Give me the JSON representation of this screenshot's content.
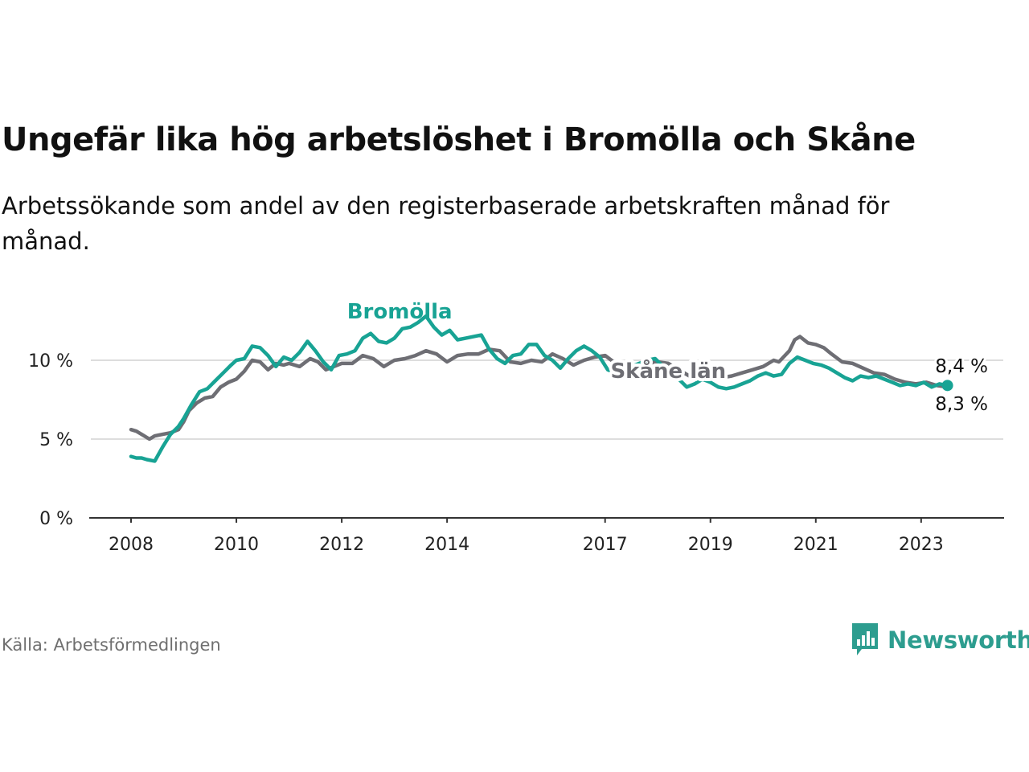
{
  "title": "Ungefär lika hög arbetslöshet i Bromölla och Skåne",
  "subtitle": "Arbetssökande som andel av den registerbaserade arbetskraften månad för månad.",
  "source": "Källa: Arbetsförmedlingen",
  "brand": {
    "name": "Newsworthy",
    "icon": "newsworthy-logo-icon"
  },
  "colors": {
    "bromolla": "#18a394",
    "skane": "#6e6e74",
    "grid": "#dddddd",
    "axis": "#333333"
  },
  "chart_data": {
    "type": "line",
    "title": "Ungefär lika hög arbetslöshet i Bromölla och Skåne",
    "xlabel": "",
    "ylabel": "",
    "xlim": [
      2008,
      2024.3
    ],
    "ylim": [
      0,
      12
    ],
    "yticks": [
      0,
      5,
      10
    ],
    "ytick_labels": [
      "0 %",
      "5 %",
      "10 %"
    ],
    "xticks": [
      2008,
      2010,
      2012,
      2014,
      2017,
      2019,
      2021,
      2023
    ],
    "xtick_labels": [
      "2008",
      "2010",
      "2012",
      "2014",
      "2017",
      "2019",
      "2021",
      "2023"
    ],
    "grid": true,
    "series": [
      {
        "name": "Skåne län",
        "label": "Skåne län",
        "end_label": "8,3 %",
        "points": [
          [
            2008.0,
            5.6
          ],
          [
            2008.1,
            5.5
          ],
          [
            2008.2,
            5.3
          ],
          [
            2008.35,
            5.0
          ],
          [
            2008.45,
            5.2
          ],
          [
            2008.6,
            5.3
          ],
          [
            2008.75,
            5.4
          ],
          [
            2008.9,
            5.6
          ],
          [
            2009.0,
            6.1
          ],
          [
            2009.1,
            6.8
          ],
          [
            2009.25,
            7.3
          ],
          [
            2009.4,
            7.6
          ],
          [
            2009.55,
            7.7
          ],
          [
            2009.7,
            8.3
          ],
          [
            2009.85,
            8.6
          ],
          [
            2010.0,
            8.8
          ],
          [
            2010.15,
            9.3
          ],
          [
            2010.3,
            10.0
          ],
          [
            2010.45,
            9.9
          ],
          [
            2010.6,
            9.4
          ],
          [
            2010.75,
            9.8
          ],
          [
            2010.9,
            9.7
          ],
          [
            2011.0,
            9.8
          ],
          [
            2011.2,
            9.6
          ],
          [
            2011.4,
            10.1
          ],
          [
            2011.55,
            9.9
          ],
          [
            2011.7,
            9.4
          ],
          [
            2011.85,
            9.6
          ],
          [
            2012.0,
            9.8
          ],
          [
            2012.2,
            9.8
          ],
          [
            2012.4,
            10.3
          ],
          [
            2012.6,
            10.1
          ],
          [
            2012.8,
            9.6
          ],
          [
            2013.0,
            10.0
          ],
          [
            2013.2,
            10.1
          ],
          [
            2013.4,
            10.3
          ],
          [
            2013.6,
            10.6
          ],
          [
            2013.8,
            10.4
          ],
          [
            2014.0,
            9.9
          ],
          [
            2014.2,
            10.3
          ],
          [
            2014.4,
            10.4
          ],
          [
            2014.6,
            10.4
          ],
          [
            2014.8,
            10.7
          ],
          [
            2015.0,
            10.6
          ],
          [
            2015.2,
            9.9
          ],
          [
            2015.4,
            9.8
          ],
          [
            2015.6,
            10.0
          ],
          [
            2015.8,
            9.9
          ],
          [
            2016.0,
            10.4
          ],
          [
            2016.2,
            10.1
          ],
          [
            2016.4,
            9.7
          ],
          [
            2016.6,
            10.0
          ],
          [
            2016.8,
            10.2
          ],
          [
            2017.0,
            10.3
          ],
          [
            2017.2,
            9.8
          ],
          [
            2017.4,
            9.6
          ],
          [
            2017.6,
            9.7
          ],
          [
            2017.8,
            9.8
          ],
          [
            2018.0,
            9.9
          ],
          [
            2018.2,
            9.8
          ],
          [
            2018.4,
            9.4
          ],
          [
            2018.6,
            9.0
          ],
          [
            2018.8,
            8.9
          ],
          [
            2019.0,
            9.0
          ],
          [
            2019.2,
            8.9
          ],
          [
            2019.4,
            9.0
          ],
          [
            2019.6,
            9.2
          ],
          [
            2019.8,
            9.4
          ],
          [
            2020.0,
            9.6
          ],
          [
            2020.2,
            10.0
          ],
          [
            2020.3,
            9.9
          ],
          [
            2020.5,
            10.6
          ],
          [
            2020.6,
            11.3
          ],
          [
            2020.7,
            11.5
          ],
          [
            2020.85,
            11.1
          ],
          [
            2021.0,
            11.0
          ],
          [
            2021.15,
            10.8
          ],
          [
            2021.3,
            10.4
          ],
          [
            2021.5,
            9.9
          ],
          [
            2021.7,
            9.8
          ],
          [
            2021.9,
            9.5
          ],
          [
            2022.1,
            9.2
          ],
          [
            2022.3,
            9.1
          ],
          [
            2022.5,
            8.8
          ],
          [
            2022.7,
            8.6
          ],
          [
            2022.9,
            8.5
          ],
          [
            2023.1,
            8.6
          ],
          [
            2023.3,
            8.4
          ],
          [
            2023.5,
            8.3
          ]
        ]
      },
      {
        "name": "Bromölla",
        "label": "Bromölla",
        "end_label": "8,4 %",
        "points": [
          [
            2008.0,
            3.9
          ],
          [
            2008.1,
            3.8
          ],
          [
            2008.2,
            3.8
          ],
          [
            2008.3,
            3.7
          ],
          [
            2008.45,
            3.6
          ],
          [
            2008.6,
            4.5
          ],
          [
            2008.75,
            5.3
          ],
          [
            2008.9,
            5.8
          ],
          [
            2009.0,
            6.3
          ],
          [
            2009.15,
            7.2
          ],
          [
            2009.3,
            8.0
          ],
          [
            2009.45,
            8.2
          ],
          [
            2009.6,
            8.7
          ],
          [
            2009.75,
            9.2
          ],
          [
            2009.9,
            9.7
          ],
          [
            2010.0,
            10.0
          ],
          [
            2010.15,
            10.1
          ],
          [
            2010.3,
            10.9
          ],
          [
            2010.45,
            10.8
          ],
          [
            2010.6,
            10.3
          ],
          [
            2010.75,
            9.6
          ],
          [
            2010.9,
            10.2
          ],
          [
            2011.05,
            10.0
          ],
          [
            2011.2,
            10.5
          ],
          [
            2011.35,
            11.2
          ],
          [
            2011.5,
            10.6
          ],
          [
            2011.65,
            9.9
          ],
          [
            2011.8,
            9.4
          ],
          [
            2011.95,
            10.3
          ],
          [
            2012.1,
            10.4
          ],
          [
            2012.25,
            10.6
          ],
          [
            2012.4,
            11.4
          ],
          [
            2012.55,
            11.7
          ],
          [
            2012.7,
            11.2
          ],
          [
            2012.85,
            11.1
          ],
          [
            2013.0,
            11.4
          ],
          [
            2013.15,
            12.0
          ],
          [
            2013.3,
            12.1
          ],
          [
            2013.45,
            12.4
          ],
          [
            2013.6,
            12.8
          ],
          [
            2013.75,
            12.1
          ],
          [
            2013.9,
            11.6
          ],
          [
            2014.05,
            11.9
          ],
          [
            2014.2,
            11.3
          ],
          [
            2014.35,
            11.4
          ],
          [
            2014.5,
            11.5
          ],
          [
            2014.65,
            11.6
          ],
          [
            2014.8,
            10.7
          ],
          [
            2014.95,
            10.1
          ],
          [
            2015.1,
            9.8
          ],
          [
            2015.25,
            10.3
          ],
          [
            2015.4,
            10.4
          ],
          [
            2015.55,
            11.0
          ],
          [
            2015.7,
            11.0
          ],
          [
            2015.85,
            10.3
          ],
          [
            2016.0,
            10.0
          ],
          [
            2016.15,
            9.5
          ],
          [
            2016.3,
            10.1
          ],
          [
            2016.45,
            10.6
          ],
          [
            2016.6,
            10.9
          ],
          [
            2016.75,
            10.6
          ],
          [
            2016.9,
            10.2
          ],
          [
            2017.05,
            9.4
          ],
          [
            2017.2,
            9.2
          ],
          [
            2017.35,
            9.2
          ],
          [
            2017.5,
            9.6
          ],
          [
            2017.65,
            9.8
          ],
          [
            2017.8,
            10.0
          ],
          [
            2017.95,
            10.1
          ],
          [
            2018.1,
            9.6
          ],
          [
            2018.25,
            9.3
          ],
          [
            2018.4,
            8.8
          ],
          [
            2018.55,
            8.3
          ],
          [
            2018.7,
            8.5
          ],
          [
            2018.85,
            8.8
          ],
          [
            2019.0,
            8.6
          ],
          [
            2019.15,
            8.3
          ],
          [
            2019.3,
            8.2
          ],
          [
            2019.45,
            8.3
          ],
          [
            2019.6,
            8.5
          ],
          [
            2019.75,
            8.7
          ],
          [
            2019.9,
            9.0
          ],
          [
            2020.05,
            9.2
          ],
          [
            2020.2,
            9.0
          ],
          [
            2020.35,
            9.1
          ],
          [
            2020.5,
            9.8
          ],
          [
            2020.65,
            10.2
          ],
          [
            2020.8,
            10.0
          ],
          [
            2020.95,
            9.8
          ],
          [
            2021.1,
            9.7
          ],
          [
            2021.25,
            9.5
          ],
          [
            2021.4,
            9.2
          ],
          [
            2021.55,
            8.9
          ],
          [
            2021.7,
            8.7
          ],
          [
            2021.85,
            9.0
          ],
          [
            2022.0,
            8.9
          ],
          [
            2022.15,
            9.0
          ],
          [
            2022.3,
            8.8
          ],
          [
            2022.45,
            8.6
          ],
          [
            2022.6,
            8.4
          ],
          [
            2022.75,
            8.5
          ],
          [
            2022.9,
            8.4
          ],
          [
            2023.05,
            8.6
          ],
          [
            2023.2,
            8.3
          ],
          [
            2023.35,
            8.5
          ],
          [
            2023.5,
            8.4
          ]
        ]
      }
    ]
  }
}
